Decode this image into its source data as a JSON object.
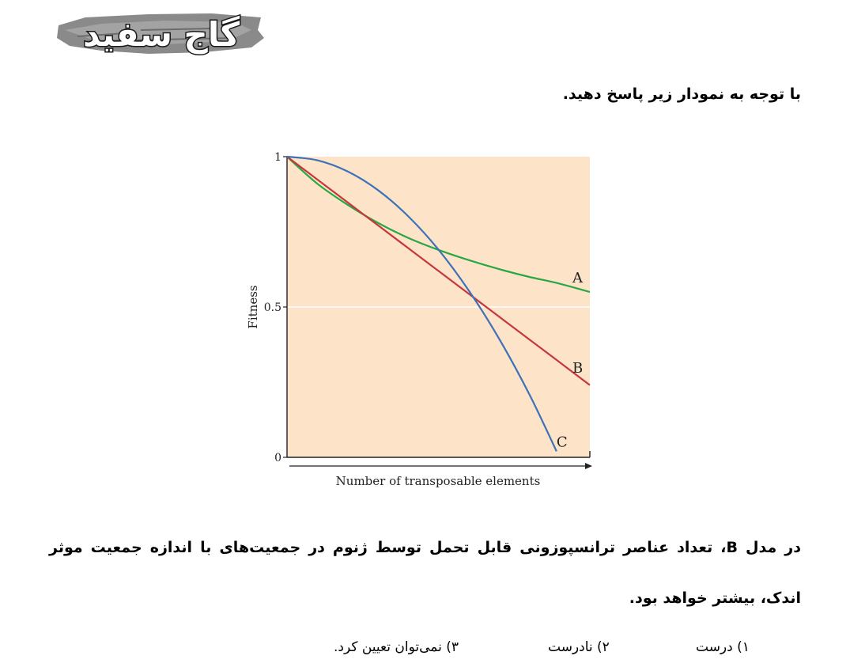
{
  "logo": {
    "text": "گاج سفید"
  },
  "intro": "با توجه به نمودار زیر پاسخ دهید.",
  "colors": {
    "plot_bg": "#fde3c8",
    "curve_a": "#27a844",
    "curve_b": "#c4373d",
    "curve_c": "#3d72b8"
  },
  "chart_data": {
    "type": "line",
    "xlabel": "Number of transposable elements",
    "ylabel": "Fitness",
    "ylim": [
      0,
      1
    ],
    "y_ticks": [
      "0",
      "0.5",
      "1"
    ],
    "x_ticks": [],
    "grid": "horizontal line at 0.5",
    "x": [
      0,
      0.1,
      0.2,
      0.3,
      0.4,
      0.5,
      0.6,
      0.7,
      0.8,
      0.89,
      1.0
    ],
    "series": [
      {
        "name": "A",
        "values": [
          1.0,
          0.91,
          0.84,
          0.78,
          0.73,
          0.69,
          0.656,
          0.626,
          0.6,
          0.58,
          0.55
        ]
      },
      {
        "name": "B",
        "values": [
          1.0,
          0.924,
          0.848,
          0.772,
          0.696,
          0.62,
          0.544,
          0.468,
          0.392,
          0.324,
          0.24
        ]
      },
      {
        "name": "C",
        "values": [
          1.0,
          0.988,
          0.951,
          0.889,
          0.802,
          0.691,
          0.555,
          0.395,
          0.21,
          0.02,
          null
        ]
      }
    ]
  },
  "question": "در مدل B، تعداد عناصر ترانسپوزونی قابل تحمل توسط ژنوم در جمعیت‌های با اندازه جمعیت موثر اندک، بیشتر خواهد بود.",
  "options": [
    "۱) درست",
    "۲) نادرست",
    "۳) نمی‌توان تعیین کرد."
  ]
}
